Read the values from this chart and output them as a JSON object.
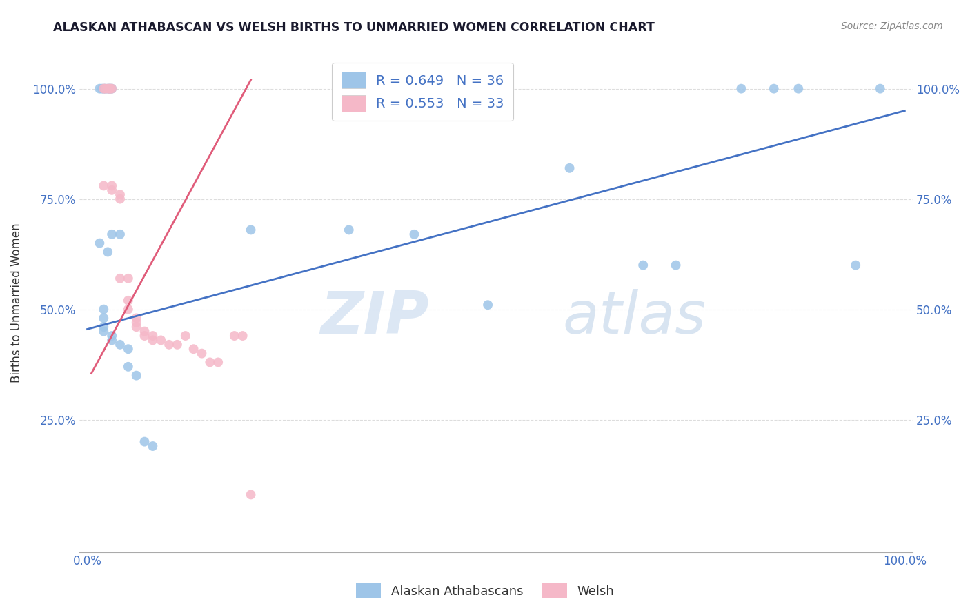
{
  "title": "ALASKAN ATHABASCAN VS WELSH BIRTHS TO UNMARRIED WOMEN CORRELATION CHART",
  "source": "Source: ZipAtlas.com",
  "ylabel": "Births to Unmarried Women",
  "blue_scatter": [
    [
      0.015,
      1.0
    ],
    [
      0.018,
      1.0
    ],
    [
      0.02,
      1.0
    ],
    [
      0.022,
      1.0
    ],
    [
      0.025,
      1.0
    ],
    [
      0.027,
      1.0
    ],
    [
      0.028,
      1.0
    ],
    [
      0.03,
      1.0
    ],
    [
      0.015,
      0.65
    ],
    [
      0.025,
      0.63
    ],
    [
      0.03,
      0.67
    ],
    [
      0.04,
      0.67
    ],
    [
      0.02,
      0.5
    ],
    [
      0.02,
      0.48
    ],
    [
      0.02,
      0.46
    ],
    [
      0.02,
      0.45
    ],
    [
      0.03,
      0.44
    ],
    [
      0.03,
      0.43
    ],
    [
      0.04,
      0.42
    ],
    [
      0.05,
      0.41
    ],
    [
      0.05,
      0.37
    ],
    [
      0.06,
      0.35
    ],
    [
      0.07,
      0.2
    ],
    [
      0.08,
      0.19
    ],
    [
      0.2,
      0.68
    ],
    [
      0.32,
      0.68
    ],
    [
      0.4,
      0.67
    ],
    [
      0.49,
      0.51
    ],
    [
      0.59,
      0.82
    ],
    [
      0.68,
      0.6
    ],
    [
      0.72,
      0.6
    ],
    [
      0.8,
      1.0
    ],
    [
      0.84,
      1.0
    ],
    [
      0.87,
      1.0
    ],
    [
      0.94,
      0.6
    ],
    [
      0.97,
      1.0
    ]
  ],
  "pink_scatter": [
    [
      0.02,
      1.0
    ],
    [
      0.022,
      1.0
    ],
    [
      0.025,
      1.0
    ],
    [
      0.027,
      1.0
    ],
    [
      0.028,
      1.0
    ],
    [
      0.03,
      1.0
    ],
    [
      0.02,
      0.78
    ],
    [
      0.03,
      0.78
    ],
    [
      0.03,
      0.77
    ],
    [
      0.04,
      0.76
    ],
    [
      0.04,
      0.75
    ],
    [
      0.04,
      0.57
    ],
    [
      0.05,
      0.57
    ],
    [
      0.05,
      0.52
    ],
    [
      0.05,
      0.5
    ],
    [
      0.06,
      0.48
    ],
    [
      0.06,
      0.47
    ],
    [
      0.06,
      0.46
    ],
    [
      0.07,
      0.45
    ],
    [
      0.07,
      0.44
    ],
    [
      0.08,
      0.44
    ],
    [
      0.08,
      0.43
    ],
    [
      0.09,
      0.43
    ],
    [
      0.1,
      0.42
    ],
    [
      0.12,
      0.44
    ],
    [
      0.13,
      0.41
    ],
    [
      0.15,
      0.38
    ],
    [
      0.16,
      0.38
    ],
    [
      0.18,
      0.44
    ],
    [
      0.19,
      0.44
    ],
    [
      0.11,
      0.42
    ],
    [
      0.14,
      0.4
    ],
    [
      0.2,
      0.08
    ]
  ],
  "blue_line_x": [
    0.0,
    1.0
  ],
  "blue_line_y": [
    0.455,
    0.95
  ],
  "pink_line_x": [
    0.005,
    0.2
  ],
  "pink_line_y": [
    0.355,
    1.02
  ],
  "blue_color": "#9ec5e8",
  "pink_color": "#f5b8c8",
  "blue_line_color": "#4472c4",
  "pink_line_color": "#e05c7a",
  "legend_R_blue": "R = 0.649",
  "legend_N_blue": "N = 36",
  "legend_R_pink": "R = 0.553",
  "legend_N_pink": "N = 33",
  "watermark_zip": "ZIP",
  "watermark_atlas": "atlas",
  "scatter_size": 100,
  "background_color": "#ffffff",
  "grid_color": "#dddddd",
  "tick_color": "#4472c4",
  "title_color": "#1a1a2e",
  "source_color": "#888888",
  "ylabel_color": "#333333",
  "ytick_positions": [
    0.25,
    0.5,
    0.75,
    1.0
  ],
  "ytick_labels": [
    "25.0%",
    "50.0%",
    "75.0%",
    "100.0%"
  ],
  "xlim": [
    -0.01,
    1.01
  ],
  "ylim": [
    -0.05,
    1.08
  ]
}
